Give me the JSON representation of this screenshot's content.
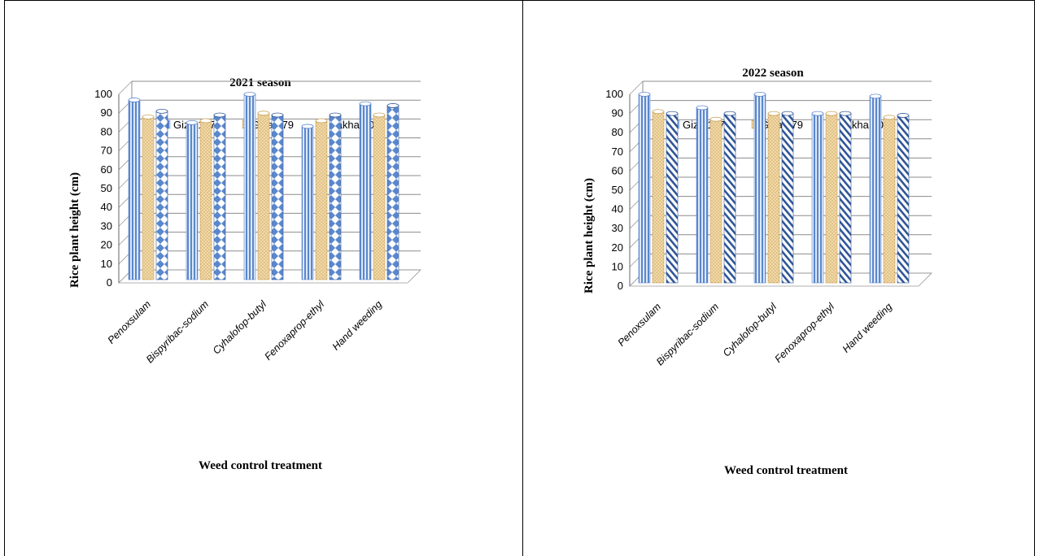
{
  "colors": {
    "giza177": "#8eaee0",
    "giza179": "#eac98f",
    "sakha108": "#5b87cc"
  },
  "chart_data": [
    {
      "type": "bar",
      "title": "2021 season",
      "xlabel": "Weed control treatment",
      "ylabel": "Rice plant  height (cm)",
      "ylim": [
        0,
        100
      ],
      "yticks": [
        "0",
        "10",
        "20",
        "30",
        "40",
        "50",
        "60",
        "70",
        "80",
        "90",
        "100"
      ],
      "categories": [
        "Penoxsulam",
        "Bispyribac-sodium",
        "Cyhalofop-butyl",
        "Fenoxaprop-ethyl",
        "Hand weeding"
      ],
      "legend_position": "top",
      "grid": true,
      "series": [
        {
          "name": "Giza 177",
          "values": [
            97,
            85,
            100,
            83,
            95
          ]
        },
        {
          "name": "Giza 179",
          "values": [
            88,
            86,
            90,
            86,
            89
          ]
        },
        {
          "name": "Sakha 108",
          "values": [
            91,
            89,
            89,
            89,
            94
          ]
        }
      ]
    },
    {
      "type": "bar",
      "title": "2022 season",
      "xlabel": "Weed control treatment",
      "ylabel": "Rice plant  height (cm)",
      "ylim": [
        0,
        100
      ],
      "yticks": [
        "0",
        "10",
        "20",
        "30",
        "40",
        "50",
        "60",
        "70",
        "80",
        "90",
        "100"
      ],
      "categories": [
        "Penoxsulam",
        "Bispyribac-sodium",
        "Cyhalofop-butyl",
        "Fenoxaprop-ethyl",
        "Hand weeding"
      ],
      "legend_position": "top",
      "grid": true,
      "series": [
        {
          "name": "Giza 177",
          "values": [
            100,
            93,
            100,
            90,
            99
          ]
        },
        {
          "name": "Giza 179",
          "values": [
            91,
            87,
            90,
            90,
            88
          ]
        },
        {
          "name": "Sakha 108",
          "values": [
            90,
            90,
            90,
            90,
            89
          ]
        }
      ]
    }
  ]
}
